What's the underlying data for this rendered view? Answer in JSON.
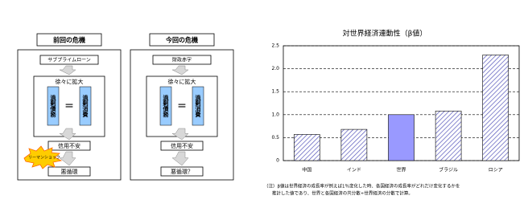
{
  "diagram": {
    "panels": [
      {
        "title": "前回の危機",
        "top": "サブプライムローン",
        "spread": "徐々に拡大",
        "left": "過剰債務",
        "equals": "=",
        "right": "過剰消費",
        "middle": "信用不安",
        "burst": "リーマンショック",
        "bottom": "悪循環"
      },
      {
        "title": "今回の危機",
        "top": "財政赤字",
        "spread": "徐々に拡大",
        "left": "過剰債務",
        "equals": "=",
        "right": "過剰消費",
        "middle": "信用不安",
        "bottom": "悪循環？"
      }
    ]
  },
  "chart_data": {
    "type": "bar",
    "title": "対世界経済連動性（β値）",
    "categories": [
      "中国",
      "インド",
      "世界",
      "ブラジル",
      "ロシア"
    ],
    "values": [
      0.57,
      0.68,
      1.0,
      1.08,
      2.3
    ],
    "colors": [
      "#5555bb",
      "#5555bb",
      "#9999ff",
      "#5555bb",
      "#5555bb"
    ],
    "hatched": [
      true,
      true,
      false,
      true,
      true
    ],
    "ylim": [
      0,
      2.5
    ],
    "yticks": [
      0,
      0.5,
      {
        "value": 1,
        "label": "1.0"
      },
      1.5,
      {
        "value": 2,
        "label": "2.0"
      },
      2.5
    ],
    "grid": true,
    "notes": [
      "（注）β値は世界経済の成長率が例えば1％変化した時、各国経済の成長率がどれだけ変化するかを",
      "推計した値であり、世界と各国経済の共分散÷世界経済の分散で計算。"
    ]
  }
}
